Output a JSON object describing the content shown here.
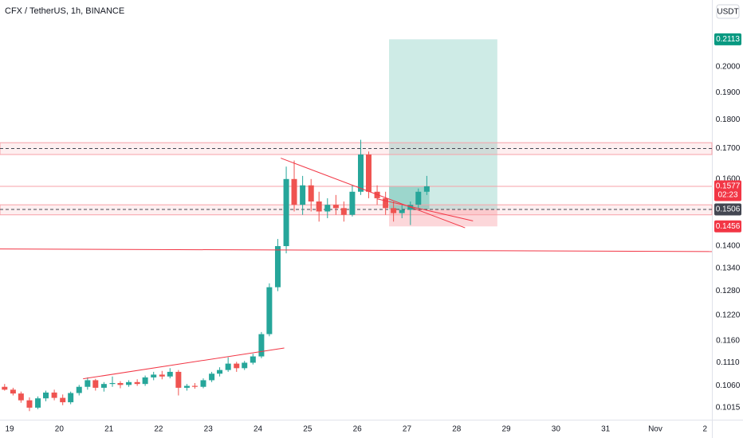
{
  "chart_data": {
    "type": "candlestick",
    "title": "CFX / TetherUS, 1h, BINANCE",
    "currency": "USDT",
    "log_scale": true,
    "grid": false,
    "up_color": "#26a69a",
    "down_color": "#ef5350",
    "xlim": [
      18.807,
      33.14
    ],
    "xticks": [
      19,
      20,
      21,
      22,
      23,
      24,
      25,
      26,
      27,
      28,
      29,
      30,
      31,
      {
        "value": 32,
        "label": "Nov"
      },
      {
        "value": 33,
        "label": "2"
      }
    ],
    "ylim": [
      0.0991,
      0.2285
    ],
    "yticks": [
      0.1015,
      {
        "value": 0.106,
        "label": "0.1060"
      },
      {
        "value": 0.111,
        "label": "0.1110"
      },
      {
        "value": 0.116,
        "label": "0.1160"
      },
      {
        "value": 0.122,
        "label": "0.1220"
      },
      {
        "value": 0.128,
        "label": "0.1280"
      },
      {
        "value": 0.134,
        "label": "0.1340"
      },
      {
        "value": 0.14,
        "label": "0.1400"
      },
      {
        "value": 0.16,
        "label": "0.1600"
      },
      {
        "value": 0.17,
        "label": "0.1700"
      },
      {
        "value": 0.18,
        "label": "0.1800"
      },
      {
        "value": 0.19,
        "label": "0.1900"
      },
      {
        "value": 0.2,
        "label": "0.2000"
      }
    ],
    "x": [
      18.9,
      19.07,
      19.23,
      19.4,
      19.57,
      19.73,
      19.9,
      20.07,
      20.23,
      20.4,
      20.57,
      20.73,
      20.9,
      21.07,
      21.23,
      21.4,
      21.57,
      21.73,
      21.9,
      22.07,
      22.23,
      22.4,
      22.57,
      22.73,
      22.9,
      23.07,
      23.23,
      23.4,
      23.57,
      23.73,
      23.9,
      24.07,
      24.23,
      24.4,
      24.57,
      24.73,
      24.9,
      25.07,
      25.23,
      25.4,
      25.57,
      25.73,
      25.9,
      26.07,
      26.23,
      26.4,
      26.57,
      26.73,
      26.9,
      27.07,
      27.23,
      27.4
    ],
    "open": [
      0.1058,
      0.1052,
      0.1044,
      0.103,
      0.1015,
      0.1034,
      0.1046,
      0.1035,
      0.1026,
      0.1045,
      0.1058,
      0.1072,
      0.1056,
      0.1064,
      0.1066,
      0.1062,
      0.1068,
      0.1064,
      0.1078,
      0.1084,
      0.108,
      0.109,
      0.1056,
      0.106,
      0.1058,
      0.1072,
      0.1086,
      0.1094,
      0.1108,
      0.1098,
      0.111,
      0.1124,
      0.1175,
      0.129,
      0.14,
      0.16,
      0.152,
      0.158,
      0.153,
      0.15,
      0.152,
      0.151,
      0.149,
      0.156,
      0.168,
      0.156,
      0.154,
      0.151,
      0.1495,
      0.1505,
      0.152,
      0.156
    ],
    "high": [
      0.1064,
      0.1056,
      0.1048,
      0.1036,
      0.1038,
      0.105,
      0.1052,
      0.1042,
      0.1048,
      0.1062,
      0.1078,
      0.1075,
      0.1068,
      0.108,
      0.107,
      0.1072,
      0.1074,
      0.1082,
      0.109,
      0.1092,
      0.1098,
      0.1094,
      0.1064,
      0.1066,
      0.1076,
      0.109,
      0.11,
      0.1122,
      0.1112,
      0.1114,
      0.113,
      0.118,
      0.13,
      0.142,
      0.164,
      0.166,
      0.161,
      0.16,
      0.156,
      0.154,
      0.155,
      0.153,
      0.158,
      0.173,
      0.169,
      0.158,
      0.156,
      0.153,
      0.152,
      0.153,
      0.157,
      0.161
    ],
    "low": [
      0.105,
      0.104,
      0.1025,
      0.1008,
      0.1012,
      0.1028,
      0.103,
      0.102,
      0.1022,
      0.104,
      0.1052,
      0.105,
      0.1048,
      0.1058,
      0.1055,
      0.1058,
      0.106,
      0.106,
      0.1072,
      0.1074,
      0.1076,
      0.104,
      0.105,
      0.1054,
      0.1055,
      0.1068,
      0.108,
      0.109,
      0.109,
      0.1094,
      0.1106,
      0.112,
      0.117,
      0.128,
      0.138,
      0.15,
      0.149,
      0.15,
      0.147,
      0.148,
      0.149,
      0.147,
      0.1485,
      0.155,
      0.154,
      0.152,
      0.149,
      0.147,
      0.148,
      0.146,
      0.151,
      0.155
    ],
    "close": [
      0.1052,
      0.1044,
      0.103,
      0.1015,
      0.1034,
      0.1046,
      0.1035,
      0.1026,
      0.1045,
      0.1058,
      0.1072,
      0.1056,
      0.1064,
      0.1066,
      0.1062,
      0.1068,
      0.1064,
      0.1078,
      0.1084,
      0.108,
      0.109,
      0.1056,
      0.106,
      0.1058,
      0.1072,
      0.1086,
      0.1094,
      0.1108,
      0.1098,
      0.111,
      0.1124,
      0.1175,
      0.129,
      0.14,
      0.16,
      0.152,
      0.158,
      0.153,
      0.15,
      0.152,
      0.151,
      0.149,
      0.156,
      0.168,
      0.156,
      0.154,
      0.151,
      0.1495,
      0.1505,
      0.152,
      0.156,
      0.1577
    ],
    "zones": [
      {
        "low": 0.168,
        "high": 0.172,
        "mid": 0.17
      },
      {
        "low": 0.149,
        "high": 0.152,
        "mid": 0.1506
      }
    ],
    "trend_lines": [
      {
        "x": [
          20.48,
          24.53
        ],
        "y": [
          0.1075,
          0.1143
        ]
      },
      {
        "x": [
          24.46,
          28.17
        ],
        "y": [
          0.1668,
          0.1452
        ]
      },
      {
        "x": [
          26.4,
          28.33
        ],
        "y": [
          0.1538,
          0.1472
        ]
      },
      {
        "x": [
          18.807,
          33.14
        ],
        "y": [
          0.1392,
          0.1385
        ]
      }
    ],
    "position": {
      "x": [
        26.64,
        28.82
      ],
      "entry": 0.1506,
      "target": 0.2113,
      "stop": 0.1456,
      "current_end": 27.45
    },
    "price_tags": [
      {
        "value": 0.2113,
        "color": "#089981"
      },
      {
        "value": 0.1577,
        "color": "#f23645",
        "countdown": "02:23"
      },
      {
        "value": 0.1506,
        "color": "#434651"
      },
      {
        "value": 0.1456,
        "color": "#f23645"
      }
    ]
  }
}
